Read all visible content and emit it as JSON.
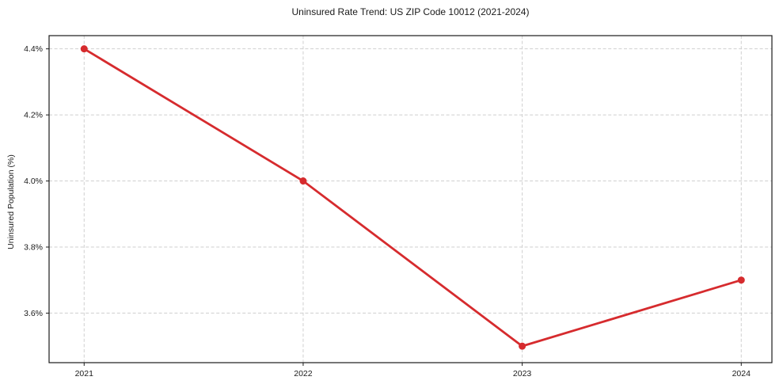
{
  "chart_data": {
    "type": "line",
    "title": "Uninsured Rate Trend: US ZIP Code 10012 (2021-2024)",
    "xlabel": "",
    "ylabel": "Uninsured Population (%)",
    "x": [
      2021,
      2022,
      2023,
      2024
    ],
    "y": [
      4.4,
      4.0,
      3.5,
      3.7
    ],
    "x_tick_labels": [
      "2021",
      "2022",
      "2023",
      "2024"
    ],
    "x_tick_values": [
      2021,
      2022,
      2023,
      2024
    ],
    "y_tick_labels": [
      "3.6%",
      "3.8%",
      "4.0%",
      "4.2%",
      "4.4%"
    ],
    "y_tick_values": [
      3.6,
      3.8,
      4.0,
      4.2,
      4.4
    ],
    "xlim": [
      2020.84,
      2024.14
    ],
    "ylim": [
      3.45,
      4.44
    ],
    "grid": true,
    "legend": "none",
    "line_color": "#d62b2e",
    "marker": "circle",
    "grid_color": "#cfcfcf",
    "axis_color": "#1a1a1a",
    "background_color": "#ffffff"
  }
}
